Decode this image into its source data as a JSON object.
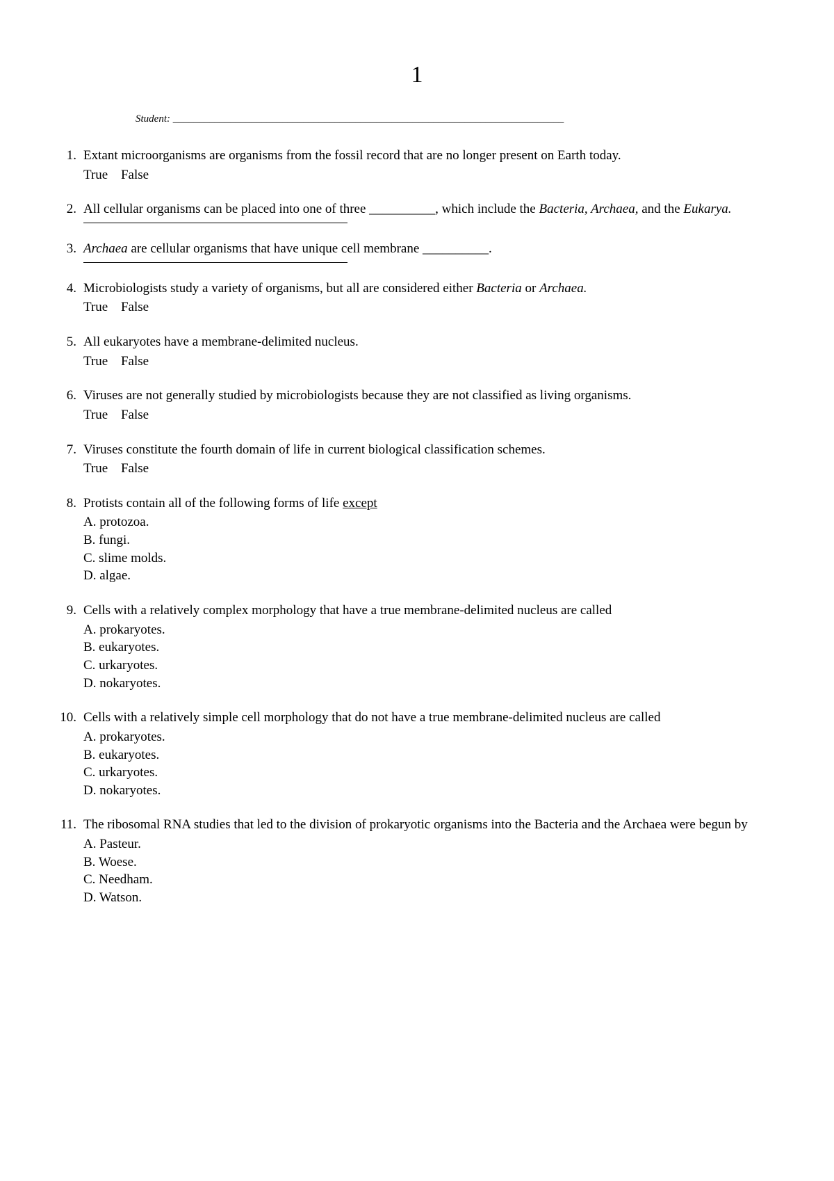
{
  "page_number": "1",
  "student_label": "Student: ___________________________________________________________________________",
  "tf_true": "True",
  "tf_false": "False",
  "questions": {
    "q1": {
      "text": "Extant microorganisms are organisms from the fossil record that are no longer present on Earth today."
    },
    "q2": {
      "t1": "All cellular organisms can be placed into one of three __________, which include the ",
      "it1": "Bacteria, Archaea,",
      "t2": " and the ",
      "it2": "Eukarya."
    },
    "q3": {
      "it1": "Archaea",
      "t1": " are cellular organisms that have unique cell membrane __________."
    },
    "q4": {
      "t1": "Microbiologists study a variety of organisms, but all are considered either ",
      "it1": "Bacteria",
      "t2": " or ",
      "it2": "Archaea."
    },
    "q5": {
      "text": "All eukaryotes have a membrane-delimited nucleus."
    },
    "q6": {
      "text": "Viruses are not generally studied by microbiologists because they are not classified as living organisms."
    },
    "q7": {
      "text": "Viruses constitute the fourth domain of life in current biological classification schemes."
    },
    "q8": {
      "t1": "Protists contain all of the following forms of life ",
      "u1": "except",
      "options": {
        "a": "A. protozoa.",
        "b": "B. fungi.",
        "c": "C. slime molds.",
        "d": "D. algae."
      }
    },
    "q9": {
      "text": "Cells with a relatively complex morphology that have a true membrane-delimited nucleus are called",
      "options": {
        "a": "A. prokaryotes.",
        "b": "B. eukaryotes.",
        "c": "C. urkaryotes.",
        "d": "D. nokaryotes."
      }
    },
    "q10": {
      "text": "Cells with a relatively simple cell morphology that do not have a true membrane-delimited nucleus are called",
      "options": {
        "a": "A. prokaryotes.",
        "b": "B. eukaryotes.",
        "c": "C. urkaryotes.",
        "d": "D. nokaryotes."
      }
    },
    "q11": {
      "text": "The ribosomal RNA studies that led to the division of prokaryotic organisms into the Bacteria and the Archaea were begun by",
      "options": {
        "a": "A. Pasteur.",
        "b": "B. Woese.",
        "c": "C. Needham.",
        "d": "D. Watson."
      }
    }
  }
}
